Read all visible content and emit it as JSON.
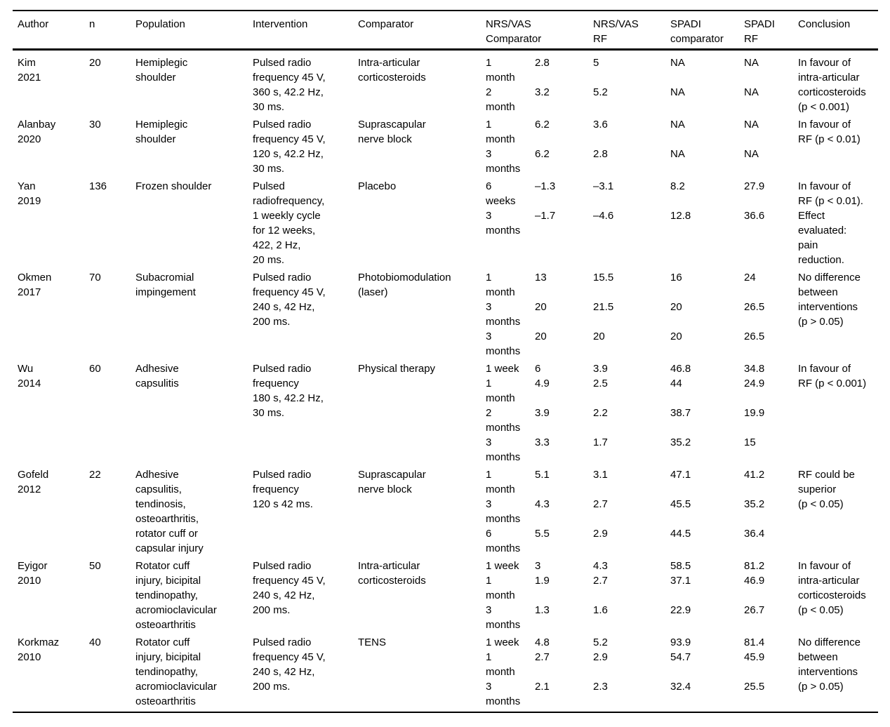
{
  "table": {
    "header": {
      "author": "Author",
      "n": "n",
      "population": "Population",
      "intervention": "Intervention",
      "comparator": "Comparator",
      "nrs_vas_comparator": "NRS/VAS\nComparator",
      "nrs_vas_rf": "NRS/VAS\nRF",
      "spadi_comparator": "SPADI\ncomparator",
      "spadi_rf": "SPADI\nRF",
      "conclusion": "Conclusion"
    },
    "rows": [
      {
        "author": "Kim\n2021",
        "n": "20",
        "population": "Hemiplegic\nshoulder",
        "intervention": "Pulsed radio\nfrequency 45 V,\n360 s, 42.2 Hz,\n30 ms.",
        "comparator": "Intra-articular\ncorticosteroids",
        "measurements": [
          {
            "time": "1\nmonth",
            "nrs_comparator": "2.8",
            "nrs_rf": "5",
            "spadi_comparator": "NA",
            "spadi_rf": "NA"
          },
          {
            "time": "2\nmonth",
            "nrs_comparator": "3.2",
            "nrs_rf": "5.2",
            "spadi_comparator": "NA",
            "spadi_rf": "NA"
          }
        ],
        "conclusion": "In favour of\nintra-articular\ncorticosteroids\n(p < 0.001)"
      },
      {
        "author": "Alanbay\n2020",
        "n": "30",
        "population": "Hemiplegic\nshoulder",
        "intervention": "Pulsed radio\nfrequency 45 V,\n120 s, 42.2 Hz,\n30 ms.",
        "comparator": "Suprascapular\nnerve block",
        "measurements": [
          {
            "time": "1\nmonth",
            "nrs_comparator": "6.2",
            "nrs_rf": "3.6",
            "spadi_comparator": "NA",
            "spadi_rf": "NA"
          },
          {
            "time": "3\nmonths",
            "nrs_comparator": "6.2",
            "nrs_rf": "2.8",
            "spadi_comparator": "NA",
            "spadi_rf": "NA"
          }
        ],
        "conclusion": "In favour of\nRF (p < 0.01)"
      },
      {
        "author": "Yan\n2019",
        "n": "136",
        "population": "Frozen shoulder",
        "intervention": "Pulsed\nradiofrequency,\n1 weekly cycle\nfor 12 weeks,\n422, 2 Hz,\n20 ms.",
        "comparator": "Placebo",
        "measurements": [
          {
            "time": "6\nweeks",
            "nrs_comparator": "–1.3",
            "nrs_rf": "–3.1",
            "spadi_comparator": "8.2",
            "spadi_rf": "27.9"
          },
          {
            "time": "3\nmonths",
            "nrs_comparator": "–1.7",
            "nrs_rf": "–4.6",
            "spadi_comparator": "12.8",
            "spadi_rf": "36.6"
          }
        ],
        "conclusion": "In favour of\nRF (p < 0.01).\nEffect\nevaluated:\npain\nreduction."
      },
      {
        "author": "Okmen\n2017",
        "n": "70",
        "population": "Subacromial\nimpingement",
        "intervention": "Pulsed radio\nfrequency 45 V,\n240 s, 42 Hz,\n200 ms.",
        "comparator": "Photobiomodulation\n(laser)",
        "measurements": [
          {
            "time": "1\nmonth",
            "nrs_comparator": "13",
            "nrs_rf": "15.5",
            "spadi_comparator": "16",
            "spadi_rf": "24"
          },
          {
            "time": "3\nmonths",
            "nrs_comparator": "20",
            "nrs_rf": "21.5",
            "spadi_comparator": "20",
            "spadi_rf": "26.5"
          },
          {
            "time": "3\nmonths",
            "nrs_comparator": "20",
            "nrs_rf": "20",
            "spadi_comparator": "20",
            "spadi_rf": "26.5"
          }
        ],
        "conclusion": "No difference\nbetween\ninterventions\n(p > 0.05)"
      },
      {
        "author": "Wu\n2014",
        "n": "60",
        "population": "Adhesive\ncapsulitis",
        "intervention": "Pulsed radio\nfrequency\n180 s, 42.2 Hz,\n30 ms.",
        "comparator": "Physical therapy",
        "measurements": [
          {
            "time": "1 week",
            "nrs_comparator": "6",
            "nrs_rf": "3.9",
            "spadi_comparator": "46.8",
            "spadi_rf": "34.8"
          },
          {
            "time": "1\nmonth",
            "nrs_comparator": "4.9",
            "nrs_rf": "2.5",
            "spadi_comparator": "44",
            "spadi_rf": "24.9"
          },
          {
            "time": "2\nmonths",
            "nrs_comparator": "3.9",
            "nrs_rf": "2.2",
            "spadi_comparator": "38.7",
            "spadi_rf": "19.9"
          },
          {
            "time": "3\nmonths",
            "nrs_comparator": "3.3",
            "nrs_rf": "1.7",
            "spadi_comparator": "35.2",
            "spadi_rf": "15"
          }
        ],
        "conclusion": "In favour of\nRF (p < 0.001)"
      },
      {
        "author": "Gofeld\n2012",
        "n": "22",
        "population": "Adhesive\ncapsulitis,\ntendinosis,\nosteoarthritis,\nrotator cuff or\ncapsular injury",
        "intervention": "Pulsed radio\nfrequency\n120 s 42 ms.",
        "comparator": "Suprascapular\nnerve block",
        "measurements": [
          {
            "time": "1\nmonth",
            "nrs_comparator": "5.1",
            "nrs_rf": "3.1",
            "spadi_comparator": "47.1",
            "spadi_rf": "41.2"
          },
          {
            "time": "3\nmonths",
            "nrs_comparator": "4.3",
            "nrs_rf": "2.7",
            "spadi_comparator": "45.5",
            "spadi_rf": "35.2"
          },
          {
            "time": "6\nmonths",
            "nrs_comparator": "5.5",
            "nrs_rf": "2.9",
            "spadi_comparator": "44.5",
            "spadi_rf": "36.4"
          }
        ],
        "conclusion": "RF could be\nsuperior\n(p < 0.05)"
      },
      {
        "author": "Eyigor\n2010",
        "n": "50",
        "population": "Rotator cuff\ninjury, bicipital\ntendinopathy,\nacromioclavicular\nosteoarthritis",
        "intervention": "Pulsed radio\nfrequency 45 V,\n240 s, 42 Hz,\n200 ms.",
        "comparator": "Intra-articular\ncorticosteroids",
        "measurements": [
          {
            "time": "1 week",
            "nrs_comparator": "3",
            "nrs_rf": "4.3",
            "spadi_comparator": "58.5",
            "spadi_rf": "81.2"
          },
          {
            "time": "1\nmonth",
            "nrs_comparator": "1.9",
            "nrs_rf": "2.7",
            "spadi_comparator": "37.1",
            "spadi_rf": "46.9"
          },
          {
            "time": "3\nmonths",
            "nrs_comparator": "1.3",
            "nrs_rf": "1.6",
            "spadi_comparator": "22.9",
            "spadi_rf": "26.7"
          }
        ],
        "conclusion": "In favour of\nintra-articular\ncorticosteroids\n(p < 0.05)"
      },
      {
        "author": "Korkmaz\n2010",
        "n": "40",
        "population": "Rotator cuff\ninjury, bicipital\ntendinopathy,\nacromioclavicular\nosteoarthritis",
        "intervention": "Pulsed radio\nfrequency 45 V,\n240 s, 42 Hz,\n200 ms.",
        "comparator": "TENS",
        "measurements": [
          {
            "time": "1 week",
            "nrs_comparator": "4.8",
            "nrs_rf": "5.2",
            "spadi_comparator": "93.9",
            "spadi_rf": "81.4"
          },
          {
            "time": "1\nmonth",
            "nrs_comparator": "2.7",
            "nrs_rf": "2.9",
            "spadi_comparator": "54.7",
            "spadi_rf": "45.9"
          },
          {
            "time": "3\nmonths",
            "nrs_comparator": "2.1",
            "nrs_rf": "2.3",
            "spadi_comparator": "32.4",
            "spadi_rf": "25.5"
          }
        ],
        "conclusion": "No difference\nbetween\ninterventions\n(p > 0.05)"
      }
    ]
  }
}
